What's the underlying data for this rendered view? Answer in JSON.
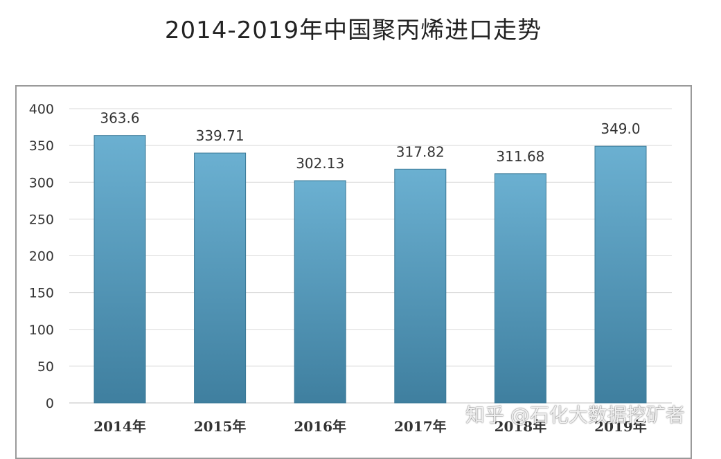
{
  "title": "2014-2019年中国聚丙烯进口走势",
  "watermark": "知乎 @石化大数据挖矿者",
  "colors": {
    "bar_top": "#6bb0d1",
    "bar_bottom": "#3f7f9f",
    "grid": "#d9d9d9",
    "text": "#333333"
  },
  "chart_data": {
    "type": "bar",
    "title": "2014-2019年中国聚丙烯进口走势",
    "categories": [
      "2014年",
      "2015年",
      "2016年",
      "2017年",
      "2018年",
      "2019年"
    ],
    "values": [
      363.6,
      339.71,
      302.13,
      317.82,
      311.68,
      349.0
    ],
    "data_labels": [
      "363.6",
      "339.71",
      "302.13",
      "317.82",
      "311.68",
      "349.0"
    ],
    "ylim": [
      0,
      400
    ],
    "yticks": [
      0,
      50,
      100,
      150,
      200,
      250,
      300,
      350,
      400
    ],
    "grid": true,
    "xlabel": "",
    "ylabel": ""
  }
}
